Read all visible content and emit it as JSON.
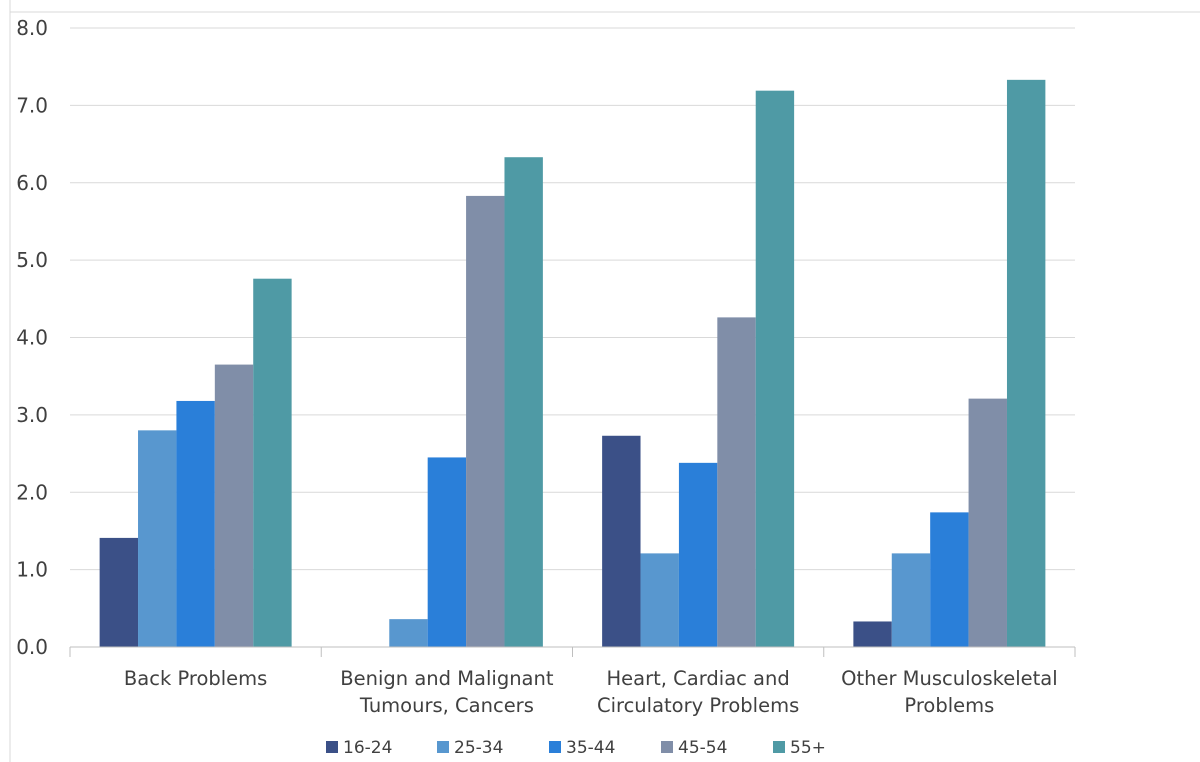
{
  "chart_data": {
    "type": "bar",
    "categories": [
      [
        "Back Problems"
      ],
      [
        "Benign and Malignant",
        "Tumours, Cancers"
      ],
      [
        "Heart, Cardiac and",
        "Circulatory Problems"
      ],
      [
        "Other Musculoskeletal",
        "Problems"
      ]
    ],
    "series": [
      {
        "name": "16-24",
        "color": "#3b5087",
        "values": [
          1.41,
          0.0,
          2.73,
          0.33
        ]
      },
      {
        "name": "25-34",
        "color": "#5897cf",
        "values": [
          2.8,
          0.36,
          1.21,
          1.21
        ]
      },
      {
        "name": "35-44",
        "color": "#2a7fd9",
        "values": [
          3.18,
          2.45,
          2.38,
          1.74
        ]
      },
      {
        "name": "45-54",
        "color": "#808ea8",
        "values": [
          3.65,
          5.83,
          4.26,
          3.21
        ]
      },
      {
        "name": "55+",
        "color": "#4f9aa5",
        "values": [
          4.76,
          6.33,
          7.19,
          7.33
        ]
      }
    ],
    "yticks": [
      "0.0",
      "1.0",
      "2.0",
      "3.0",
      "4.0",
      "5.0",
      "6.0",
      "7.0",
      "8.0"
    ],
    "ylim": [
      0,
      8
    ],
    "grid": true,
    "legend": "bottom",
    "title": "",
    "xlabel": "",
    "ylabel": ""
  }
}
